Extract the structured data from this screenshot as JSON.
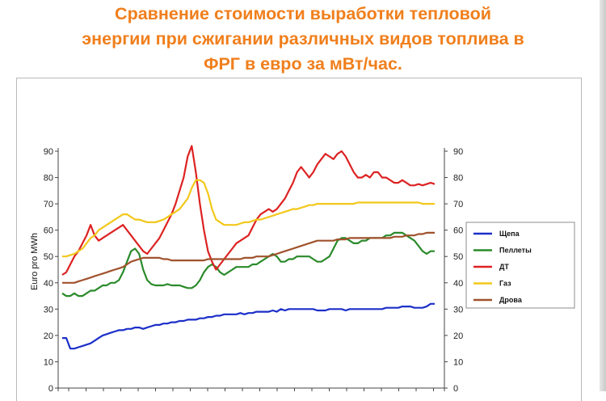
{
  "title": {
    "line1": "Сравнение стоимости выработки тепловой",
    "line2": "энергии при сжигании различных видов топлива в",
    "line3": "ФРГ в евро за мВт/час."
  },
  "colors": {
    "title": "#f07f1c",
    "Щепа": "#1c2fc9",
    "Пеллеты": "#2a8a2a",
    "ДТ": "#dd2222",
    "Газ": "#f2c81b",
    "Дрова": "#a0522d"
  },
  "chart_data": {
    "type": "line",
    "ylabel": "Euro pro MWh",
    "xlabel": "",
    "ylim": [
      0,
      90
    ],
    "y_ticks": [
      0,
      10,
      20,
      30,
      40,
      50,
      60,
      70,
      80,
      90
    ],
    "right_axis": true,
    "grid": false,
    "legend_position": "right",
    "x": [
      0,
      1,
      2,
      3,
      4,
      5,
      6,
      7,
      8,
      9,
      10,
      11,
      12,
      13,
      14,
      15,
      16,
      17,
      18,
      19,
      20,
      21,
      22,
      23,
      24,
      25,
      26,
      27,
      28,
      29,
      30,
      31,
      32,
      33,
      34,
      35,
      36,
      37,
      38,
      39,
      40,
      41,
      42,
      43,
      44,
      45,
      46,
      47,
      48,
      49,
      50,
      51,
      52,
      53,
      54,
      55,
      56,
      57,
      58,
      59,
      60,
      61,
      62,
      63,
      64,
      65,
      66,
      67,
      68,
      69,
      70,
      71,
      72,
      73,
      74,
      75,
      76,
      77,
      78,
      79,
      80,
      81,
      82,
      83,
      84,
      85,
      86,
      87,
      88,
      89,
      90,
      91,
      92
    ],
    "series": [
      {
        "name": "Щепа",
        "values": [
          19,
          19,
          15,
          15,
          15.5,
          16,
          16.5,
          17,
          18,
          19,
          20,
          20.5,
          21,
          21.5,
          22,
          22,
          22.5,
          22.5,
          23,
          23,
          22.5,
          23,
          23.5,
          24,
          24,
          24.5,
          24.5,
          25,
          25,
          25.5,
          25.5,
          26,
          26,
          26,
          26.5,
          26.5,
          27,
          27,
          27.5,
          27.5,
          28,
          28,
          28,
          28,
          28.5,
          28,
          28.5,
          28.5,
          29,
          29,
          29,
          29,
          29.5,
          29,
          30,
          29.5,
          30,
          30,
          30,
          30,
          30,
          30,
          30,
          29.5,
          29.5,
          29.5,
          30,
          30,
          30,
          30,
          29.5,
          30,
          30,
          30,
          30,
          30,
          30,
          30,
          30,
          30,
          30.5,
          30.5,
          30.5,
          30.5,
          31,
          31,
          31,
          30.5,
          30.5,
          30.5,
          31,
          32,
          32
        ]
      },
      {
        "name": "Пеллеты",
        "values": [
          36,
          35,
          35,
          36,
          35,
          35,
          36,
          37,
          37,
          38,
          39,
          39,
          40,
          40,
          41,
          44,
          48,
          52,
          53,
          51,
          45,
          41,
          39.5,
          39,
          39,
          39,
          39.5,
          39,
          39,
          39,
          38.5,
          38,
          38,
          39,
          41,
          44,
          46,
          47,
          46,
          44,
          43,
          44,
          45,
          46,
          46,
          46,
          46,
          47,
          47,
          48,
          49,
          50,
          51,
          50,
          48,
          48,
          49,
          49,
          50,
          50,
          50,
          50,
          49,
          48,
          48,
          49,
          50,
          53,
          56,
          57,
          57,
          56,
          55,
          55,
          56,
          56,
          57,
          57,
          57,
          57,
          58,
          58,
          59,
          59,
          59,
          58,
          57,
          56,
          54,
          52,
          51,
          52,
          52
        ]
      },
      {
        "name": "ДТ",
        "values": [
          43,
          44,
          47,
          50,
          52,
          55,
          58,
          62,
          58,
          56,
          57,
          58,
          59,
          60,
          61,
          62,
          60,
          58,
          56,
          54,
          52,
          51,
          53,
          55,
          57,
          60,
          63,
          66,
          70,
          75,
          80,
          88,
          92,
          82,
          70,
          60,
          52,
          48,
          45,
          47,
          49,
          51,
          53,
          55,
          56,
          57,
          58,
          61,
          64,
          66,
          67,
          68,
          67,
          68,
          70,
          72,
          75,
          78,
          82,
          84,
          82,
          80,
          82,
          85,
          87,
          89,
          88,
          87,
          89,
          90,
          88,
          85,
          82,
          80,
          80,
          81,
          80,
          82,
          82,
          80,
          80,
          79,
          78,
          78,
          79,
          78,
          77,
          77,
          77.5,
          77,
          77.5,
          78,
          77.5
        ]
      },
      {
        "name": "Газ",
        "values": [
          50,
          50,
          50.5,
          51,
          52,
          53,
          55,
          57,
          58,
          60,
          61,
          62,
          63,
          64,
          65,
          66,
          66,
          65,
          64,
          64,
          63.5,
          63,
          63,
          63,
          63.5,
          64,
          65,
          66,
          67,
          68,
          70,
          72,
          76,
          79,
          79,
          78,
          74,
          68,
          64,
          63,
          62,
          62,
          62,
          62,
          62.5,
          63,
          63,
          63.5,
          64,
          64,
          64.5,
          65,
          65.5,
          66,
          66.5,
          67,
          67.5,
          68,
          68,
          68.5,
          69,
          69.5,
          69.5,
          70,
          70,
          70,
          70,
          70,
          70,
          70,
          70,
          70,
          70,
          70.5,
          70.5,
          70.5,
          70.5,
          70.5,
          70.5,
          70.5,
          70.5,
          70.5,
          70.5,
          70.5,
          70.5,
          70.5,
          70.5,
          70.5,
          70.5,
          70,
          70,
          70,
          70
        ]
      },
      {
        "name": "Дрова",
        "values": [
          40,
          40,
          40,
          40,
          40.5,
          41,
          41.5,
          42,
          42.5,
          43,
          43.5,
          44,
          44.5,
          45,
          45.5,
          46,
          47,
          48,
          48.5,
          49,
          49.5,
          49.5,
          49.5,
          49.5,
          49.5,
          49,
          49,
          48.5,
          48.5,
          48.5,
          48.5,
          48.5,
          48.5,
          48.5,
          48.5,
          48.5,
          49,
          49,
          49,
          49,
          49,
          49,
          49,
          49,
          49,
          49.5,
          49.5,
          49.5,
          50,
          50,
          50,
          50,
          50.5,
          51,
          51.5,
          52,
          52.5,
          53,
          53.5,
          54,
          54.5,
          55,
          55.5,
          56,
          56,
          56,
          56,
          56,
          56.5,
          56.5,
          56.5,
          57,
          57,
          57,
          57,
          57,
          57,
          57,
          57,
          57,
          57,
          57,
          57.5,
          57.5,
          57.5,
          58,
          58,
          58,
          58.5,
          58.5,
          59,
          59,
          59
        ]
      }
    ]
  }
}
